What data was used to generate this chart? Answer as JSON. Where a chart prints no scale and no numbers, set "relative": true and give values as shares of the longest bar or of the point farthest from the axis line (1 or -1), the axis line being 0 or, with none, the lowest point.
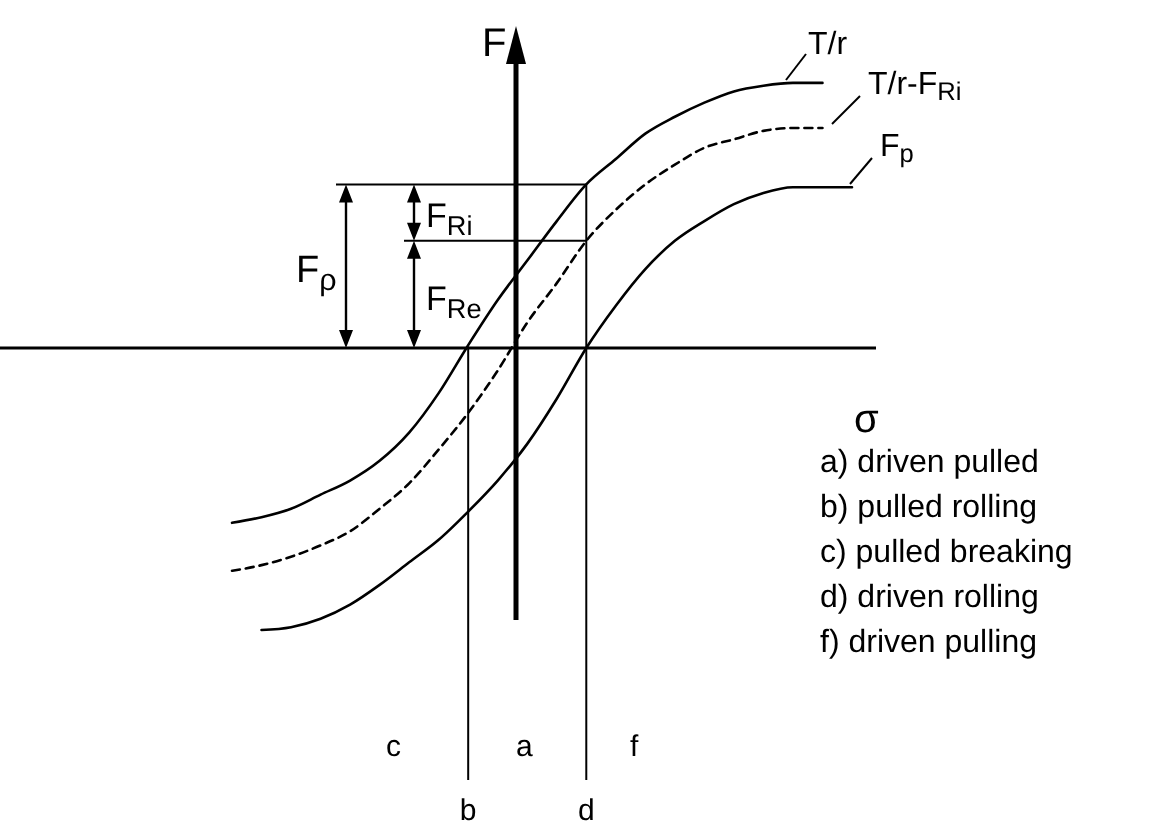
{
  "chart_data": {
    "type": "line",
    "relative": true,
    "xlabel": "σ",
    "ylabel": "F",
    "categories": [
      null,
      null,
      null,
      null,
      null,
      null,
      null,
      null,
      "b",
      null,
      null,
      null,
      "d",
      null,
      null,
      null,
      null,
      null,
      null,
      null,
      null,
      null
    ],
    "series": [
      {
        "name": "T/r",
        "color": "#000000",
        "line_style": "solid",
        "values": [
          -0.62,
          -0.6,
          -0.57,
          -0.52,
          -0.47,
          -0.4,
          -0.3,
          -0.16,
          0.01,
          0.17,
          0.31,
          0.45,
          0.58,
          0.67,
          0.76,
          0.82,
          0.87,
          0.91,
          0.93,
          0.94,
          0.94,
          null
        ]
      },
      {
        "name": "T/r-F$_{Ri}$",
        "color": "#000000",
        "line_style": "dashed",
        "values": [
          -0.79,
          -0.77,
          -0.74,
          -0.7,
          -0.65,
          -0.57,
          -0.48,
          -0.36,
          -0.23,
          -0.08,
          0.09,
          0.23,
          0.38,
          0.49,
          0.58,
          0.65,
          0.71,
          0.74,
          0.77,
          0.78,
          0.78,
          null
        ]
      },
      {
        "name": "F$_{p}$",
        "color": "#000000",
        "line_style": "solid",
        "values": [
          null,
          -1,
          -0.99,
          -0.96,
          -0.91,
          -0.84,
          -0.76,
          -0.68,
          -0.58,
          -0.47,
          -0.34,
          -0.18,
          0,
          0.15,
          0.28,
          0.38,
          0.45,
          0.51,
          0.55,
          0.57,
          0.57,
          0.57
        ]
      }
    ],
    "ref_lines": [
      {
        "axis": "y",
        "value": 0.58,
        "label": "F$_{ρ}$"
      },
      {
        "axis": "y",
        "value": 0.38,
        "label": "F$_{Ri}$"
      },
      {
        "axis": "x",
        "value": "b"
      },
      {
        "axis": "x",
        "value": "d"
      }
    ],
    "annotations": [
      "F$_{Re}$",
      "c",
      "a",
      "f",
      "a) driven pulled",
      "b) pulled rolling",
      "c) pulled breaking",
      "d) driven rolling",
      "f)  driven pulling"
    ],
    "legend": "top right"
  }
}
